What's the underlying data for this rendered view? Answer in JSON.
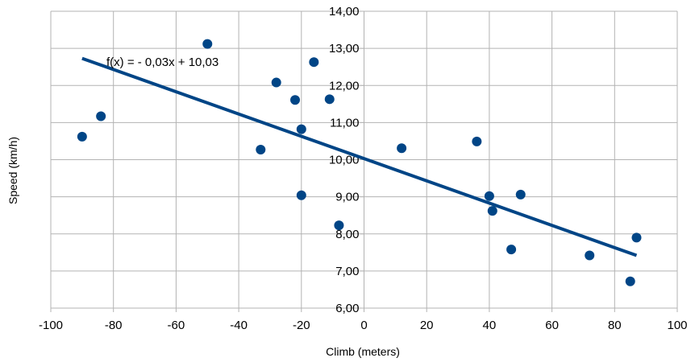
{
  "chart_data": {
    "type": "scatter",
    "xlabel": "Climb (meters)",
    "ylabel": "Speed (km/h)",
    "xlim": [
      -100,
      100
    ],
    "ylim": [
      6,
      14
    ],
    "x_ticks": [
      -100,
      -80,
      -60,
      -40,
      -20,
      0,
      20,
      40,
      60,
      80,
      100
    ],
    "x_tick_labels": [
      "-100",
      "-80",
      "-60",
      "-40",
      "-20",
      "0",
      "20",
      "40",
      "60",
      "80",
      "100"
    ],
    "y_ticks": [
      6,
      7,
      8,
      9,
      10,
      11,
      12,
      13,
      14
    ],
    "y_tick_labels": [
      "6,00",
      "7,00",
      "8,00",
      "9,00",
      "10,00",
      "11,00",
      "12,00",
      "13,00",
      "14,00"
    ],
    "grid": true,
    "points": [
      {
        "x": -90,
        "y": 10.62
      },
      {
        "x": -84,
        "y": 11.17
      },
      {
        "x": -50,
        "y": 13.12
      },
      {
        "x": -33,
        "y": 10.27
      },
      {
        "x": -28,
        "y": 12.08
      },
      {
        "x": -22,
        "y": 11.61
      },
      {
        "x": -20,
        "y": 10.82
      },
      {
        "x": -20,
        "y": 9.04
      },
      {
        "x": -16,
        "y": 12.63
      },
      {
        "x": -11,
        "y": 11.63
      },
      {
        "x": -8,
        "y": 8.23
      },
      {
        "x": 12,
        "y": 10.31
      },
      {
        "x": 36,
        "y": 10.49
      },
      {
        "x": 40,
        "y": 9.02
      },
      {
        "x": 41,
        "y": 8.62
      },
      {
        "x": 47,
        "y": 7.58
      },
      {
        "x": 50,
        "y": 9.06
      },
      {
        "x": 72,
        "y": 7.42
      },
      {
        "x": 85,
        "y": 6.72
      },
      {
        "x": 87,
        "y": 7.9
      }
    ],
    "trendline": {
      "equation": "f(x) =  - 0,03x + 10,03",
      "slope": -0.03,
      "intercept": 10.03,
      "x_range": [
        -90,
        87
      ]
    },
    "colors": {
      "points": "#004586",
      "trendline": "#004586",
      "grid": "#b3b3b3",
      "axis": "#b3b3b3"
    }
  }
}
